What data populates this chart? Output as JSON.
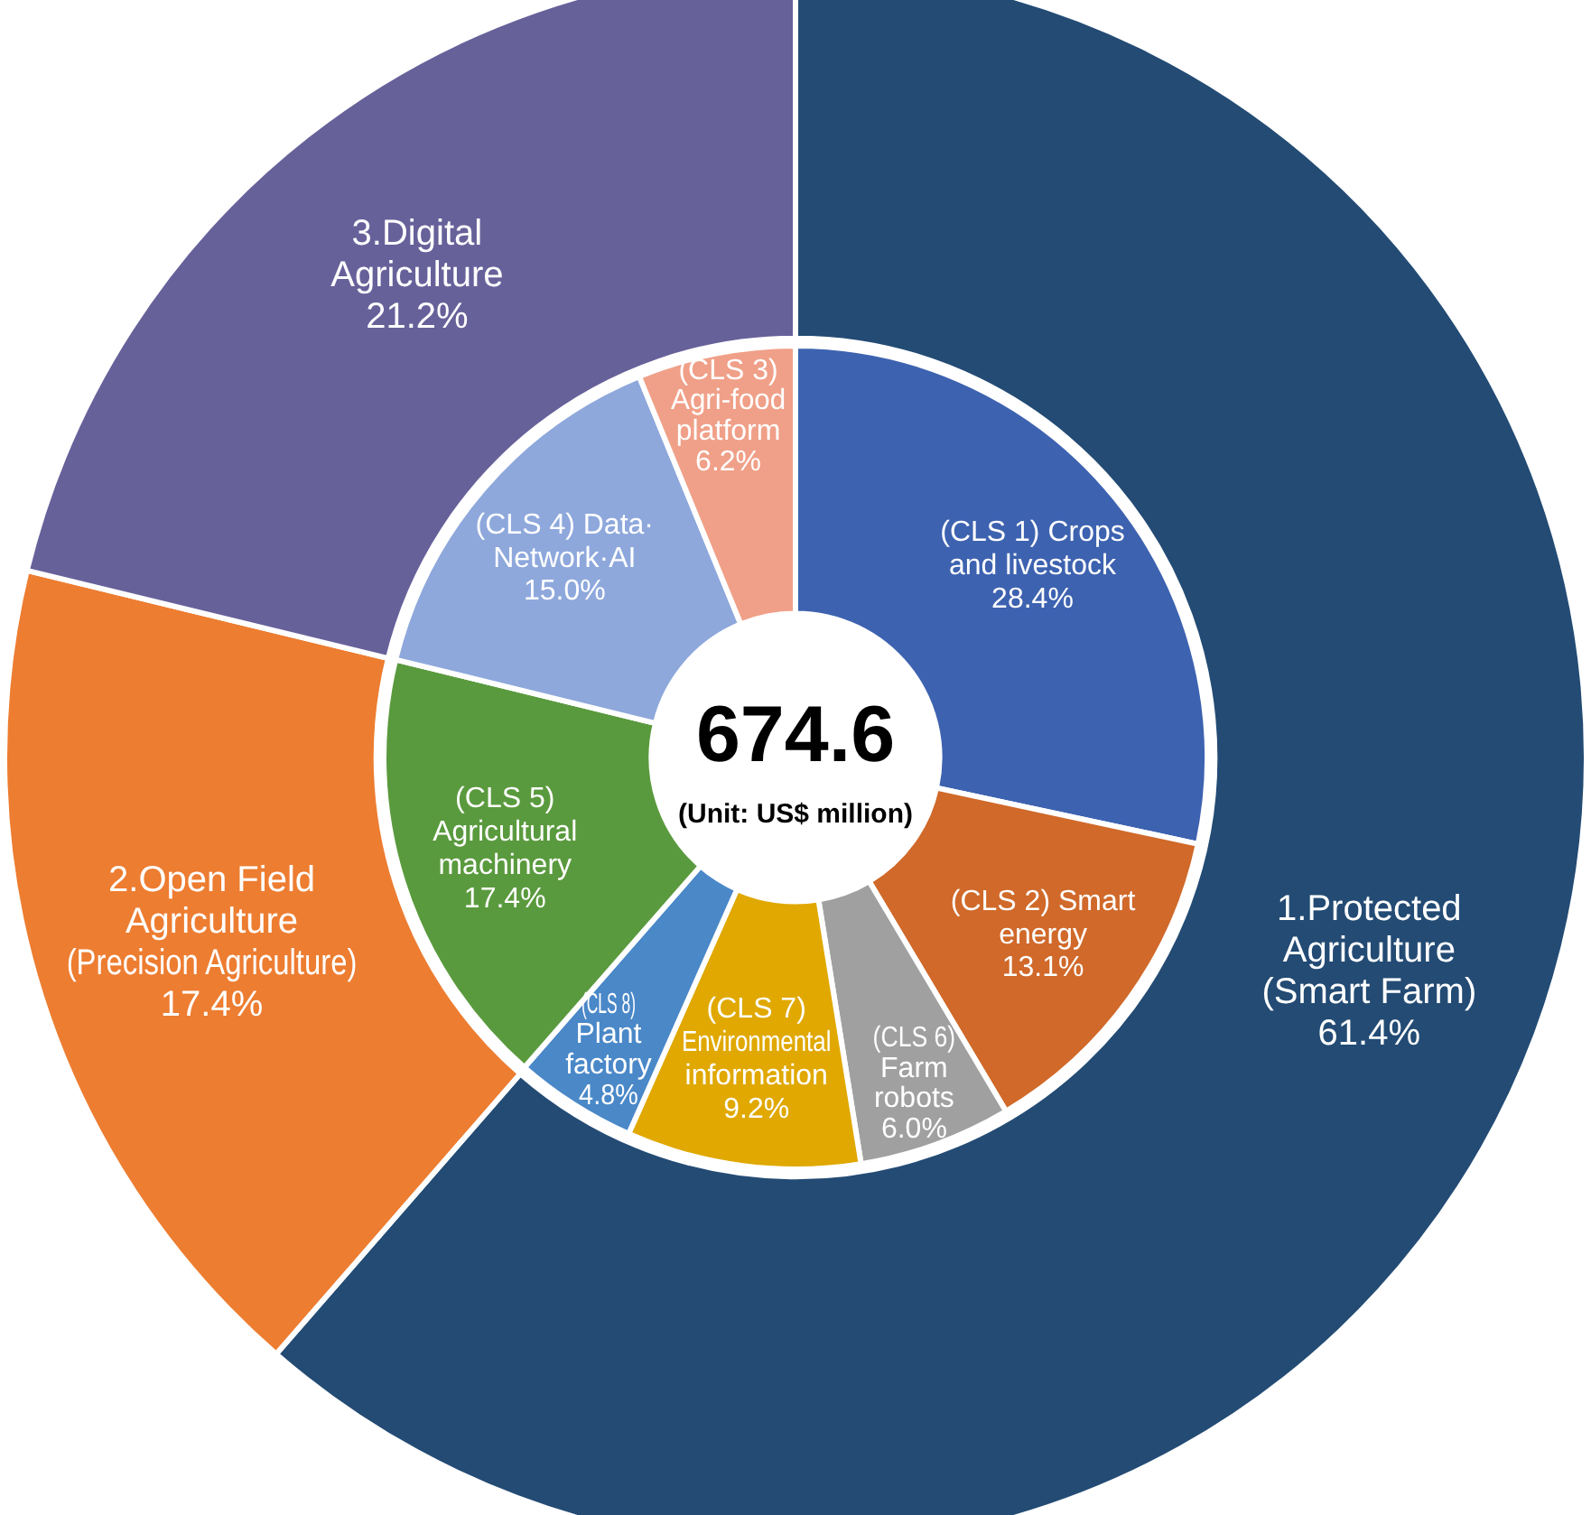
{
  "chart_data": [
    {
      "type": "donut",
      "categories": [
        "1.Protected Agriculture (Smart Farm)",
        "2.Open Field Agriculture (Precision Agriculture)",
        "3.Digital Agriculture"
      ],
      "values": [
        61.4,
        17.4,
        21.2
      ],
      "colors": [
        "#234b74",
        "#ed7d31",
        "#67619a"
      ],
      "value_labels": [
        "61.4%",
        "17.4%",
        "21.2%"
      ],
      "legend": false
    },
    {
      "type": "donut",
      "categories": [
        "(CLS 1) Crops and livestock",
        "(CLS 2) Smart energy",
        "(CLS 6) Farm robots",
        "(CLS 7) Environmental information",
        "(CLS 8) Plant factory",
        "(CLS 5) Agricultural machinery",
        "(CLS 4) Data· Network·AI",
        "(CLS 3) Agri-food platform"
      ],
      "values": [
        28.4,
        13.1,
        6.0,
        9.2,
        4.8,
        17.4,
        15.0,
        6.2
      ],
      "colors": [
        "#3d62b0",
        "#d0692a",
        "#a0a0a0",
        "#e0a800",
        "#4a88c8",
        "#5a9a3e",
        "#8ea8dc",
        "#f0a088"
      ],
      "value_labels": [
        "28.4%",
        "13.1%",
        "6.0%",
        "9.2%",
        "4.8%",
        "17.4%",
        "15.0%",
        "6.2%"
      ],
      "annotations": [
        "674.6",
        "(Unit: US$ million)"
      ],
      "legend": false
    }
  ]
}
